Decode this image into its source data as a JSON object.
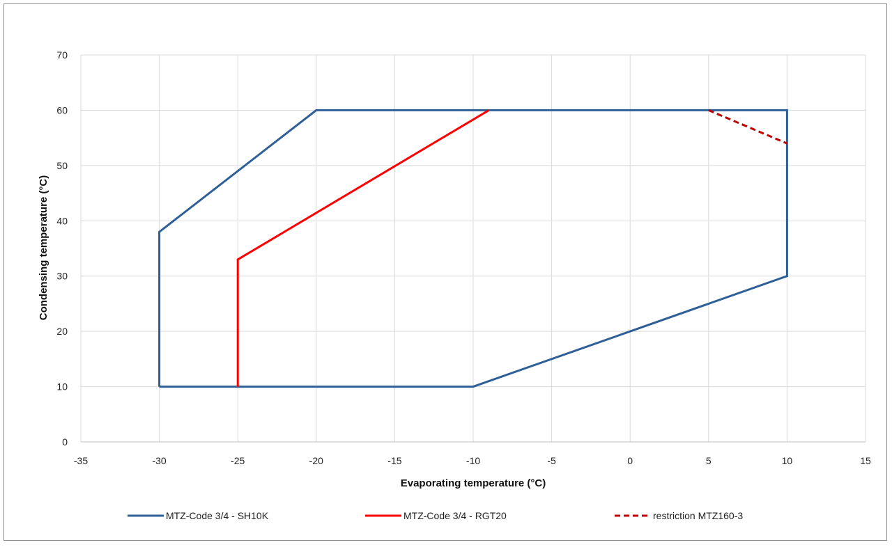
{
  "chart_data": {
    "type": "line",
    "title": "",
    "xlabel": "Evaporating temperature (°C)",
    "ylabel": "Condensing temperature  (°C)",
    "xlim": [
      -35,
      15
    ],
    "ylim": [
      0,
      70
    ],
    "x_ticks": [
      -35,
      -30,
      -25,
      -20,
      -15,
      -10,
      -5,
      0,
      5,
      10,
      15
    ],
    "y_ticks": [
      0,
      10,
      20,
      30,
      40,
      50,
      60,
      70
    ],
    "grid": true,
    "legend_position": "bottom",
    "series": [
      {
        "name": "MTZ-Code 3/4 - SH10K",
        "color": "#2e5f96",
        "style": "solid",
        "points": [
          [
            -30,
            10
          ],
          [
            -30,
            38
          ],
          [
            -20,
            60
          ],
          [
            10,
            60
          ],
          [
            10,
            30
          ],
          [
            -10,
            10
          ],
          [
            -30,
            10
          ]
        ]
      },
      {
        "name": "MTZ-Code 3/4 - RGT20",
        "color": "#ff0000",
        "style": "solid",
        "points": [
          [
            -25,
            10
          ],
          [
            -25,
            33
          ],
          [
            -9,
            60
          ]
        ]
      },
      {
        "name": "restriction MTZ160-3",
        "color": "#c00000",
        "style": "dashed",
        "points": [
          [
            5,
            60
          ],
          [
            10,
            54
          ]
        ]
      }
    ]
  }
}
